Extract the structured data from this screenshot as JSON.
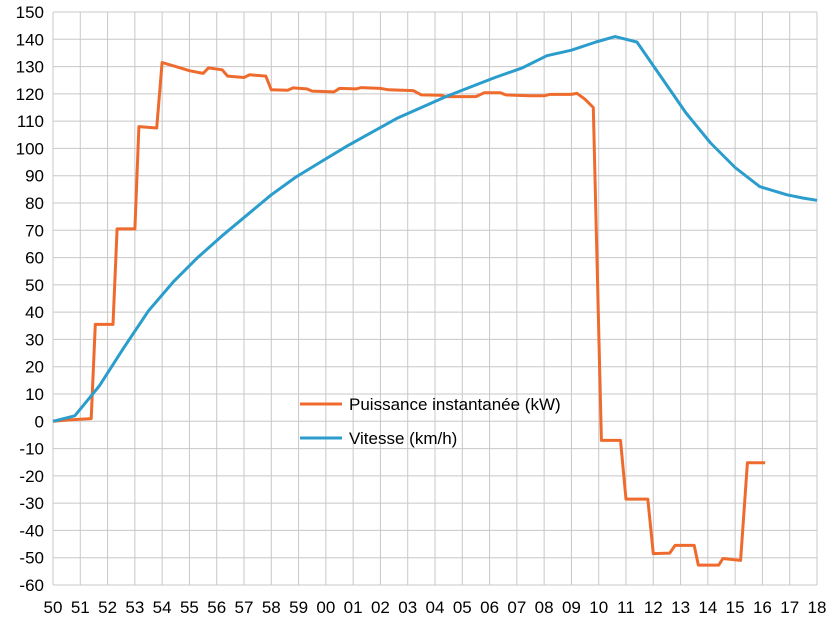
{
  "chart_data": {
    "type": "line",
    "title": "",
    "xlabel": "",
    "ylabel": "",
    "ylim": [
      -60,
      150
    ],
    "y_ticks": [
      150,
      140,
      130,
      120,
      110,
      100,
      90,
      80,
      70,
      60,
      50,
      40,
      30,
      20,
      10,
      0,
      -10,
      -20,
      -30,
      -40,
      -50,
      -60
    ],
    "x_tick_labels": [
      "50",
      "51",
      "52",
      "53",
      "54",
      "55",
      "56",
      "57",
      "58",
      "59",
      "00",
      "01",
      "02",
      "03",
      "04",
      "05",
      "06",
      "07",
      "08",
      "09",
      "10",
      "11",
      "12",
      "13",
      "14",
      "15",
      "16",
      "17",
      "18"
    ],
    "grid": true,
    "legend_position": "center",
    "series": [
      {
        "name": "Puissance instantanée (kW)",
        "color": "#ef6b2d",
        "points": [
          [
            0,
            0
          ],
          [
            0.6,
            0.5
          ],
          [
            1.4,
            1
          ],
          [
            1.55,
            35.5
          ],
          [
            2.2,
            35.5
          ],
          [
            2.35,
            70.5
          ],
          [
            3.0,
            70.5
          ],
          [
            3.15,
            108
          ],
          [
            3.8,
            107.5
          ],
          [
            4.0,
            131.5
          ],
          [
            4.5,
            130
          ],
          [
            5.0,
            128.5
          ],
          [
            5.5,
            127.5
          ],
          [
            5.7,
            129.5
          ],
          [
            6.2,
            128.8
          ],
          [
            6.4,
            126.5
          ],
          [
            7.0,
            126
          ],
          [
            7.2,
            127
          ],
          [
            7.8,
            126.5
          ],
          [
            8.0,
            121.5
          ],
          [
            8.6,
            121.3
          ],
          [
            8.8,
            122.2
          ],
          [
            9.3,
            121.8
          ],
          [
            9.5,
            121
          ],
          [
            10.3,
            120.7
          ],
          [
            10.5,
            122
          ],
          [
            11.1,
            121.8
          ],
          [
            11.3,
            122.3
          ],
          [
            12.0,
            122
          ],
          [
            12.3,
            121.5
          ],
          [
            13.2,
            121.2
          ],
          [
            13.5,
            119.6
          ],
          [
            14.2,
            119.5
          ],
          [
            14.4,
            119
          ],
          [
            15.5,
            119
          ],
          [
            15.8,
            120.4
          ],
          [
            16.4,
            120.4
          ],
          [
            16.6,
            119.6
          ],
          [
            17.2,
            119.4
          ],
          [
            17.5,
            119.3
          ],
          [
            18.0,
            119.3
          ],
          [
            18.2,
            119.8
          ],
          [
            19.0,
            119.8
          ],
          [
            19.2,
            120.2
          ],
          [
            19.5,
            118
          ],
          [
            19.8,
            115
          ],
          [
            20.1,
            -7
          ],
          [
            20.8,
            -7
          ],
          [
            21.0,
            -28.5
          ],
          [
            21.8,
            -28.5
          ],
          [
            22.0,
            -48.5
          ],
          [
            22.6,
            -48.3
          ],
          [
            22.8,
            -45.5
          ],
          [
            23.5,
            -45.5
          ],
          [
            23.65,
            -52.7
          ],
          [
            24.4,
            -52.7
          ],
          [
            24.55,
            -50.3
          ],
          [
            25.2,
            -51
          ],
          [
            25.45,
            -15.2
          ],
          [
            26.1,
            -15.2
          ]
        ]
      },
      {
        "name": "Vitesse (km/h)",
        "color": "#2b9dcc",
        "points": [
          [
            0,
            0
          ],
          [
            0.8,
            2
          ],
          [
            1.7,
            13
          ],
          [
            2.6,
            27
          ],
          [
            3.5,
            40.5
          ],
          [
            4.4,
            51
          ],
          [
            5.3,
            60
          ],
          [
            6.2,
            68
          ],
          [
            7.1,
            75.5
          ],
          [
            8.0,
            83
          ],
          [
            8.9,
            89.5
          ],
          [
            9.8,
            95
          ],
          [
            10.8,
            101
          ],
          [
            11.7,
            106
          ],
          [
            12.6,
            111
          ],
          [
            13.5,
            115
          ],
          [
            14.4,
            119
          ],
          [
            15.3,
            122.5
          ],
          [
            16.2,
            126
          ],
          [
            17.2,
            129.5
          ],
          [
            18.1,
            134
          ],
          [
            19.0,
            136
          ],
          [
            19.9,
            139
          ],
          [
            20.6,
            141
          ],
          [
            21.4,
            139
          ],
          [
            22.3,
            126
          ],
          [
            23.2,
            113
          ],
          [
            24.1,
            102
          ],
          [
            25.0,
            93
          ],
          [
            25.9,
            86
          ],
          [
            26.9,
            83
          ],
          [
            27.5,
            81.8
          ],
          [
            28,
            81
          ]
        ]
      }
    ]
  }
}
